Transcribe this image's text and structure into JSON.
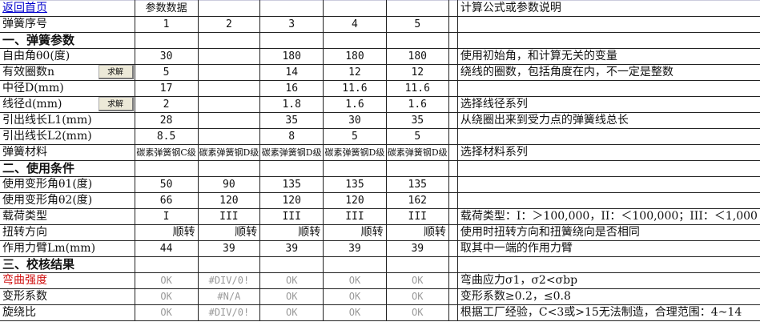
{
  "header": {
    "home_link": "返回首页",
    "param_data": "参数数据",
    "notes_title": "计算公式或参数说明"
  },
  "spring_no": {
    "label": "弹簧序号",
    "values": [
      "1",
      "2",
      "3",
      "4",
      "5"
    ]
  },
  "section1": "一、弹簧参数",
  "section2": "二、使用条件",
  "section3": "三、校核结果",
  "solve_label": "求解",
  "rows1": [
    {
      "label": "自由角θ0(度)",
      "values": [
        "30",
        "",
        "180",
        "180",
        "180"
      ],
      "note": "使用初始角，和计算无关的变量"
    },
    {
      "label": "有效圈数n",
      "values": [
        "5",
        "",
        "14",
        "12",
        "12"
      ],
      "note": "绕线的圈数，包括角度在内，不一定是整数",
      "button": true
    },
    {
      "label": "中径D(mm)",
      "values": [
        "17",
        "",
        "16",
        "11.6",
        "11.6"
      ],
      "note": ""
    },
    {
      "label": "线径d(mm)",
      "values": [
        "2",
        "",
        "1.8",
        "1.6",
        "1.6"
      ],
      "note": "选择线径系列",
      "button": true
    },
    {
      "label": "引出线长L1(mm)",
      "values": [
        "28",
        "",
        "35",
        "30",
        "35"
      ],
      "note": "从绕圈出来到受力点的弹簧线总长"
    },
    {
      "label": "引出线长L2(mm)",
      "values": [
        "8.5",
        "",
        "8",
        "5",
        "5"
      ],
      "note": ""
    }
  ],
  "material": {
    "label": "弹簧材料",
    "values": [
      "碳素弹簧钢C级",
      "碳素弹簧钢D级",
      "碳素弹簧钢D级",
      "碳素弹簧钢D级",
      "碳素弹簧钢D级"
    ],
    "note": "选择材料系列"
  },
  "rows2": [
    {
      "label": "使用变形角θ1(度)",
      "values": [
        "50",
        "90",
        "135",
        "135",
        "135"
      ],
      "note": ""
    },
    {
      "label": "使用变形角θ2(度)",
      "values": [
        "66",
        "120",
        "120",
        "120",
        "162"
      ],
      "note": ""
    },
    {
      "label": "载荷类型",
      "values": [
        "I",
        "III",
        "III",
        "III",
        "III"
      ],
      "note": "载荷类型：I：＞100,000，II：＜100,000；III：＜1,000"
    },
    {
      "label": "扭转方向",
      "values": [
        "顺转",
        "顺转",
        "顺转",
        "顺转",
        "顺转"
      ],
      "note": "使用时扭转方向和扭簧绕向是否相同"
    },
    {
      "label": "作用力臂Lm(mm)",
      "values": [
        "44",
        "39",
        "39",
        "39",
        "39"
      ],
      "note": "取其中一端的作用力臂"
    }
  ],
  "rows3": [
    {
      "label": "弯曲强度",
      "values": [
        "OK",
        "#DIV/0!",
        "OK",
        "OK",
        "OK"
      ],
      "note": "弯曲应力σ1，σ2<σbp",
      "red": true
    },
    {
      "label": "变形系数",
      "values": [
        "OK",
        "#N/A",
        "OK",
        "OK",
        "OK"
      ],
      "note": "变形系数≥0.2，≤0.8"
    },
    {
      "label": "旋绕比",
      "values": [
        "OK",
        "#DIV/0!",
        "OK",
        "OK",
        "OK"
      ],
      "note": "根据工厂经验，C<3或>15无法制造，合理范围：4~14"
    }
  ],
  "colors": {
    "link": "#0000cc",
    "warning_label": "#d01010",
    "ok_text": "#999999"
  }
}
